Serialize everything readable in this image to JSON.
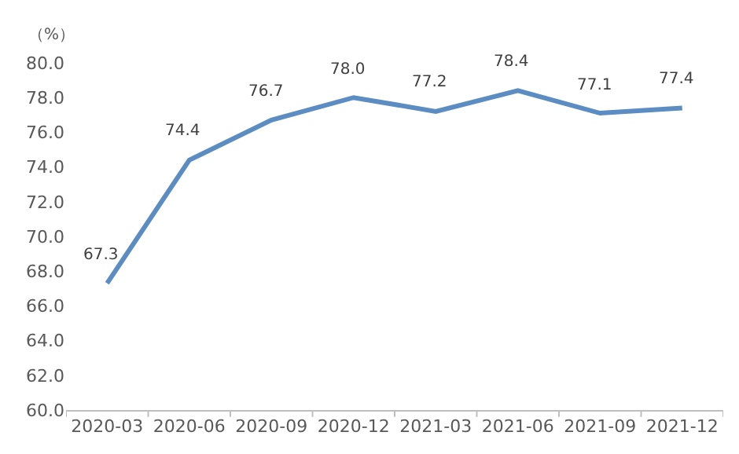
{
  "chart_data": {
    "type": "line",
    "ylabel": "（%）",
    "categories": [
      "2020-03",
      "2020-06",
      "2020-09",
      "2020-12",
      "2021-03",
      "2021-06",
      "2021-09",
      "2021-12"
    ],
    "series": [
      {
        "color": "#5b8cc2",
        "values": [
          67.3,
          74.4,
          76.7,
          78.0,
          77.2,
          78.4,
          77.1,
          77.4
        ]
      }
    ],
    "ylim": [
      60,
      80
    ],
    "yticks": [
      {
        "value": 60,
        "label": "60.0"
      },
      {
        "value": 62,
        "label": "62.0"
      },
      {
        "value": 64,
        "label": "64.0"
      },
      {
        "value": 66,
        "label": "66.0"
      },
      {
        "value": 68,
        "label": "68.0"
      },
      {
        "value": 70,
        "label": "70.0"
      },
      {
        "value": 72,
        "label": "72.0"
      },
      {
        "value": 74,
        "label": "74.0"
      },
      {
        "value": 76,
        "label": "76.0"
      },
      {
        "value": 78,
        "label": "78.0"
      },
      {
        "value": 80,
        "label": "80.0"
      }
    ],
    "value_labels": [
      "67.3",
      "74.4",
      "76.7",
      "78.0",
      "77.2",
      "78.4",
      "77.1",
      "77.4"
    ],
    "grid": false,
    "marker": "none",
    "line_style": "solid"
  }
}
